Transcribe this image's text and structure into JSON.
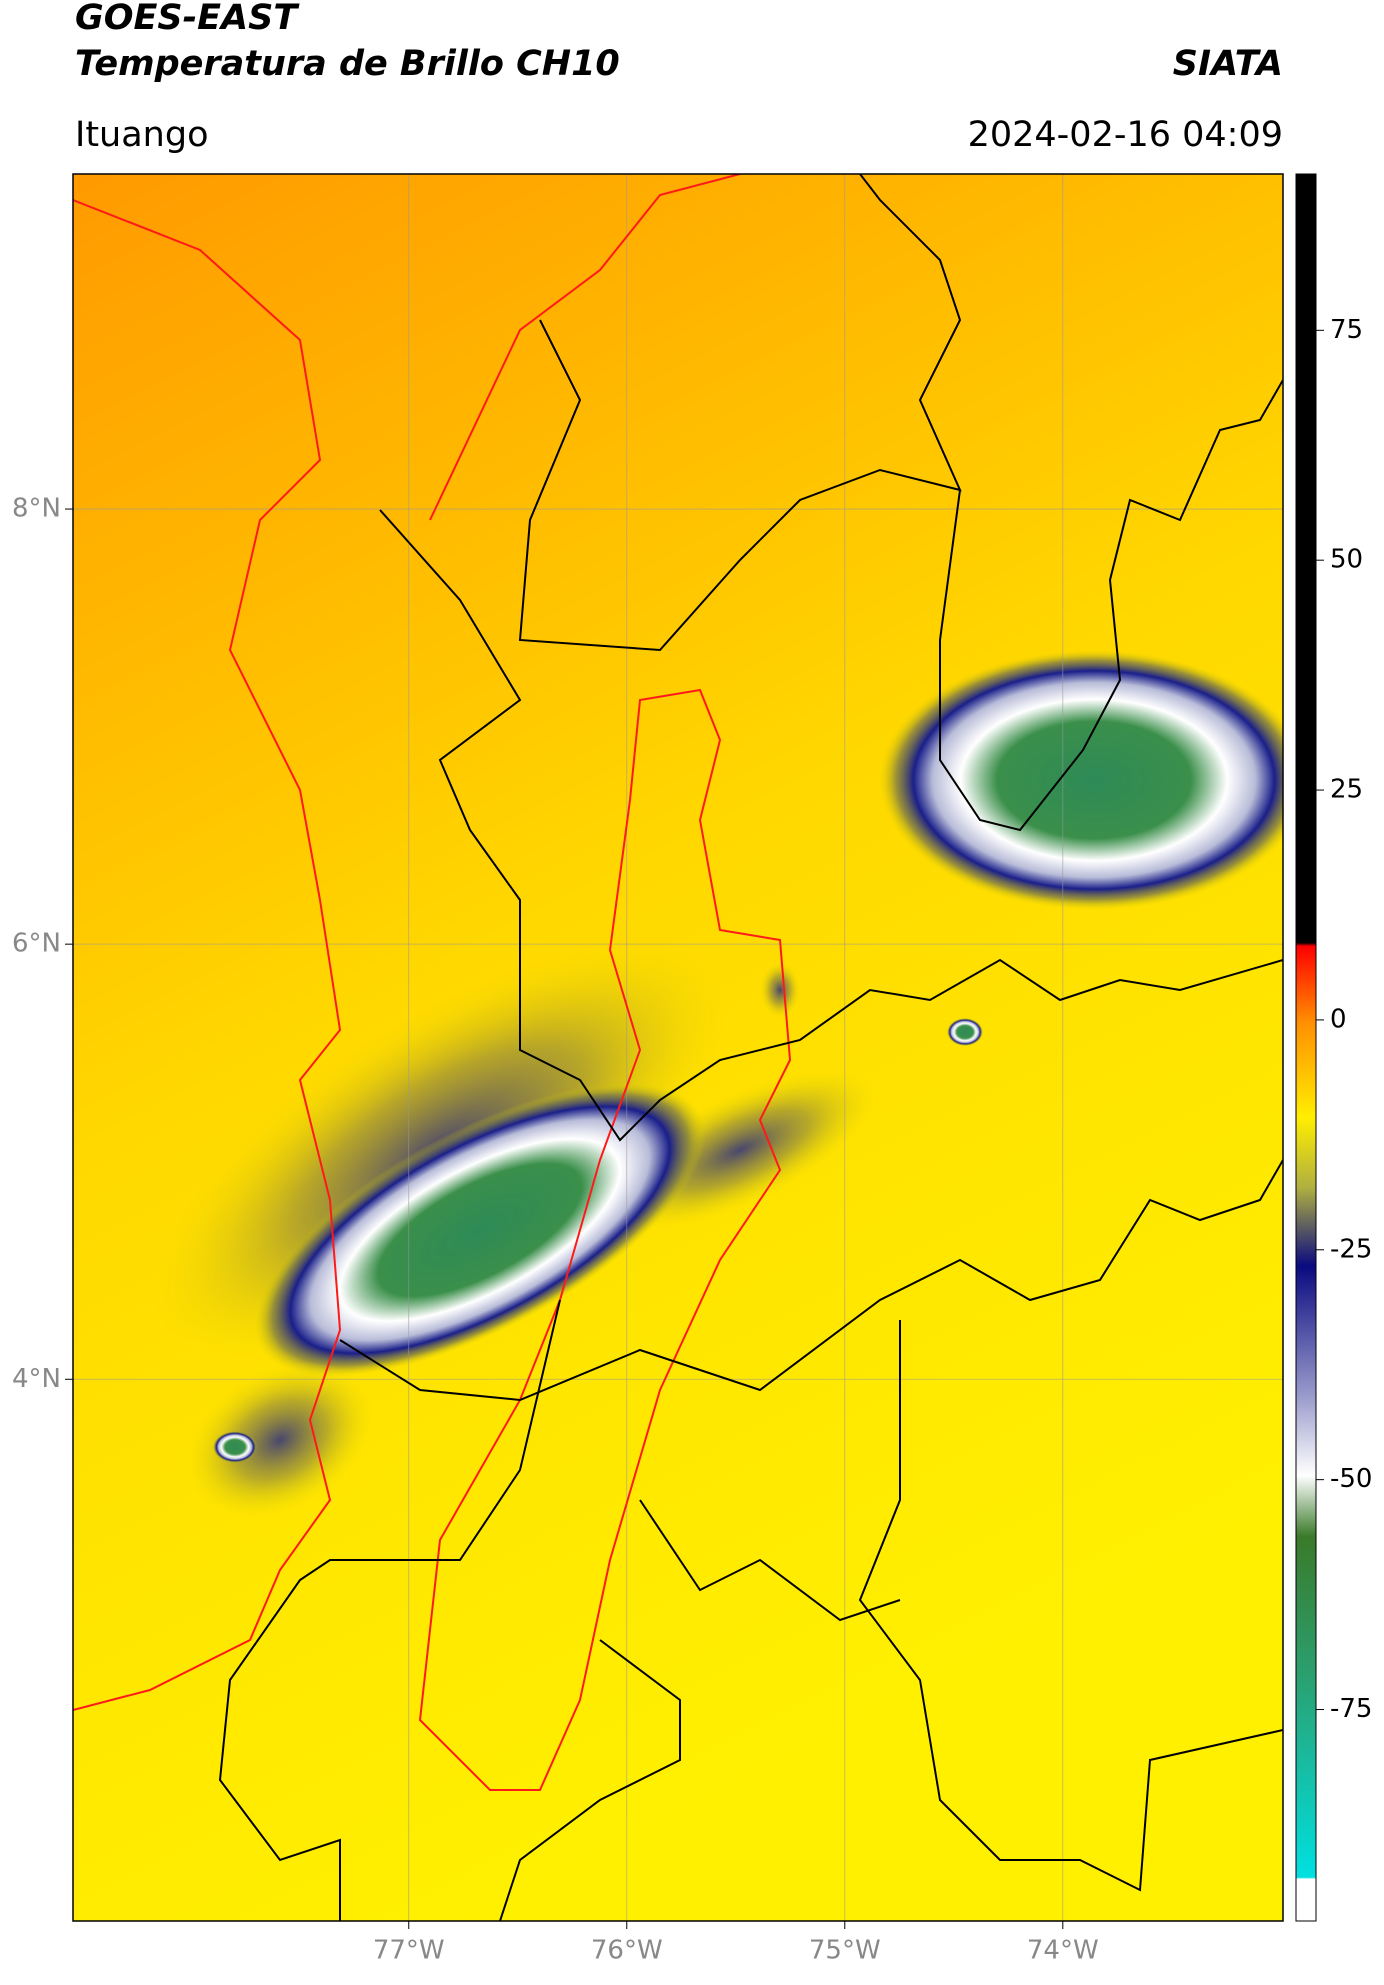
{
  "header": {
    "title": "GOES-EAST",
    "subtitle": "Temperatura de Brillo CH10",
    "source": "SIATA",
    "location": "Ituango",
    "datetime": "2024-02-16 04:09"
  },
  "map": {
    "xlim": [
      -78.54,
      -72.99
    ],
    "ylim": [
      1.51,
      9.54
    ],
    "grid": true,
    "xticks": [
      {
        "value": -77,
        "label": "77°W"
      },
      {
        "value": -76,
        "label": "76°W"
      },
      {
        "value": -75,
        "label": "75°W"
      },
      {
        "value": -74,
        "label": "74°W"
      }
    ],
    "yticks": [
      {
        "value": 4,
        "label": "4°N"
      },
      {
        "value": 6,
        "label": "6°N"
      },
      {
        "value": 8,
        "label": "8°N"
      }
    ]
  },
  "colorbar": {
    "lim": [
      -98,
      92
    ],
    "ticks": [
      -75,
      -50,
      -25,
      0,
      25,
      50,
      75
    ]
  }
}
